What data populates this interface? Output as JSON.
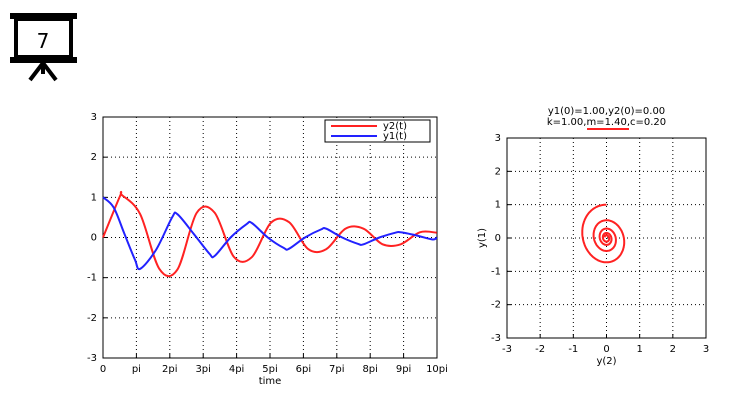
{
  "slide_badge": {
    "number": "7",
    "icon": "projector-screen-icon"
  },
  "chart_data": [
    {
      "type": "line",
      "title": "",
      "xlabel": "time",
      "ylabel": "",
      "xlim": [
        0,
        31.4159
      ],
      "ylim": [
        -3,
        3
      ],
      "grid": true,
      "legend_position": "top-right",
      "x_tick_values": [
        0,
        3.1416,
        6.2832,
        9.4248,
        12.5664,
        15.708,
        18.8496,
        21.9911,
        25.1327,
        28.2743,
        31.4159
      ],
      "x_tick_labels": [
        "0",
        "pi",
        "2pi",
        "3pi",
        "4pi",
        "5pi",
        "6pi",
        "7pi",
        "8pi",
        "9pi",
        "10pi"
      ],
      "y_ticks": [
        -3,
        -2,
        -1,
        0,
        1,
        2,
        3
      ],
      "series": [
        {
          "name": "y2(t)",
          "color": "#ff2222",
          "x": [
            0,
            1.6,
            1.8,
            3.5,
            5.3,
            7.0,
            8.8,
            10.5,
            12.3,
            14.0,
            15.8,
            17.5,
            19.3,
            21.0,
            22.8,
            24.5,
            26.3,
            28.0,
            29.8,
            31.4
          ],
          "y": [
            0,
            1.03,
            1.05,
            0.58,
            -0.78,
            -0.8,
            0.61,
            0.62,
            -0.48,
            -0.49,
            0.37,
            0.38,
            -0.29,
            -0.29,
            0.22,
            0.22,
            -0.17,
            -0.17,
            0.13,
            0.12
          ]
        },
        {
          "name": "y1(t)",
          "color": "#2222ff",
          "x": [
            0,
            1.0,
            2.0,
            3.0,
            3.5,
            5.0,
            6.5,
            7.0,
            8.5,
            10.0,
            10.5,
            12.0,
            13.5,
            14.0,
            15.5,
            17.0,
            17.5,
            19.0,
            20.5,
            21.0,
            22.5,
            24.0,
            24.5,
            26.0,
            27.5,
            28.0,
            29.5,
            31.0,
            31.4
          ],
          "y": [
            1,
            0.75,
            0.1,
            -0.55,
            -0.78,
            -0.3,
            0.5,
            0.58,
            0.1,
            -0.4,
            -0.46,
            0.0,
            0.33,
            0.36,
            0.0,
            -0.26,
            -0.28,
            0.0,
            0.2,
            0.22,
            0.0,
            -0.16,
            -0.17,
            0.0,
            0.12,
            0.13,
            0.05,
            -0.05,
            0.0
          ]
        }
      ]
    },
    {
      "type": "line",
      "title": "y1(0)=1.00,y2(0)=0.00",
      "subtitle": "k=1.00,m=1.40,c=0.20",
      "xlabel": "y(2)",
      "ylabel": "y(1)",
      "xlim": [
        -3,
        3
      ],
      "ylim": [
        -3,
        3
      ],
      "grid": true,
      "x_ticks": [
        -3,
        -2,
        -1,
        0,
        1,
        2,
        3
      ],
      "y_ticks": [
        -3,
        -2,
        -1,
        0,
        1,
        2,
        3
      ],
      "series": [
        {
          "color": "#ff2222",
          "decay": 0.0845,
          "omega": 0.843,
          "t_end": 31.4
        }
      ]
    }
  ]
}
